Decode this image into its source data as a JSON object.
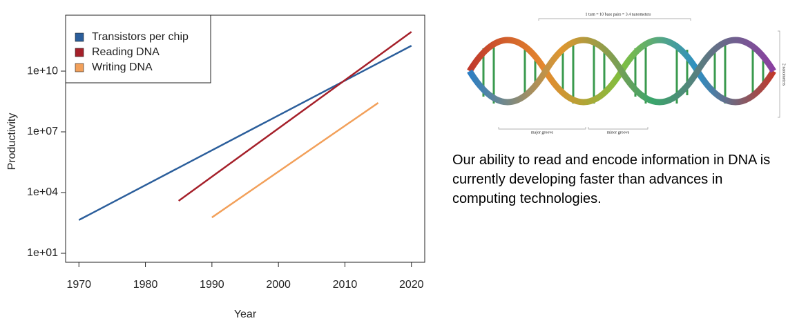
{
  "chart_data": {
    "type": "line",
    "xlabel": "Year",
    "ylabel": "Productivity",
    "xlim": [
      1968,
      2022
    ],
    "xticks": [
      1970,
      1980,
      1990,
      2000,
      2010,
      2020
    ],
    "ylim": [
      3.6,
      5800000000000.0
    ],
    "log_y": true,
    "yticks": [
      {
        "value": 10,
        "label": "1e+01"
      },
      {
        "value": 10000,
        "label": "1e+04"
      },
      {
        "value": 10000000,
        "label": "1e+07"
      },
      {
        "value": 10000000000,
        "label": "1e+10"
      }
    ],
    "legend": "top-left",
    "series": [
      {
        "name": "Transistors per chip",
        "color": "#2b5e9b",
        "x": [
          1970,
          2020
        ],
        "values": [
          440,
          180000000000
        ]
      },
      {
        "name": "Reading DNA",
        "color": "#a5202a",
        "x": [
          1985,
          2020
        ],
        "values": [
          3900,
          870000000000
        ]
      },
      {
        "name": "Writing DNA",
        "color": "#f2a05a",
        "x": [
          1990,
          2015
        ],
        "values": [
          590,
          270000000
        ]
      }
    ]
  },
  "figure": {
    "turn_label": "1 turn = 10 base pairs = 3.4 nanometers",
    "major_groove": "major groove",
    "minor_groove": "minor groove",
    "width_label": "2 nanometers"
  },
  "caption": "Our ability to read and encode information in DNA is currently developing faster than advances in computing technologies."
}
